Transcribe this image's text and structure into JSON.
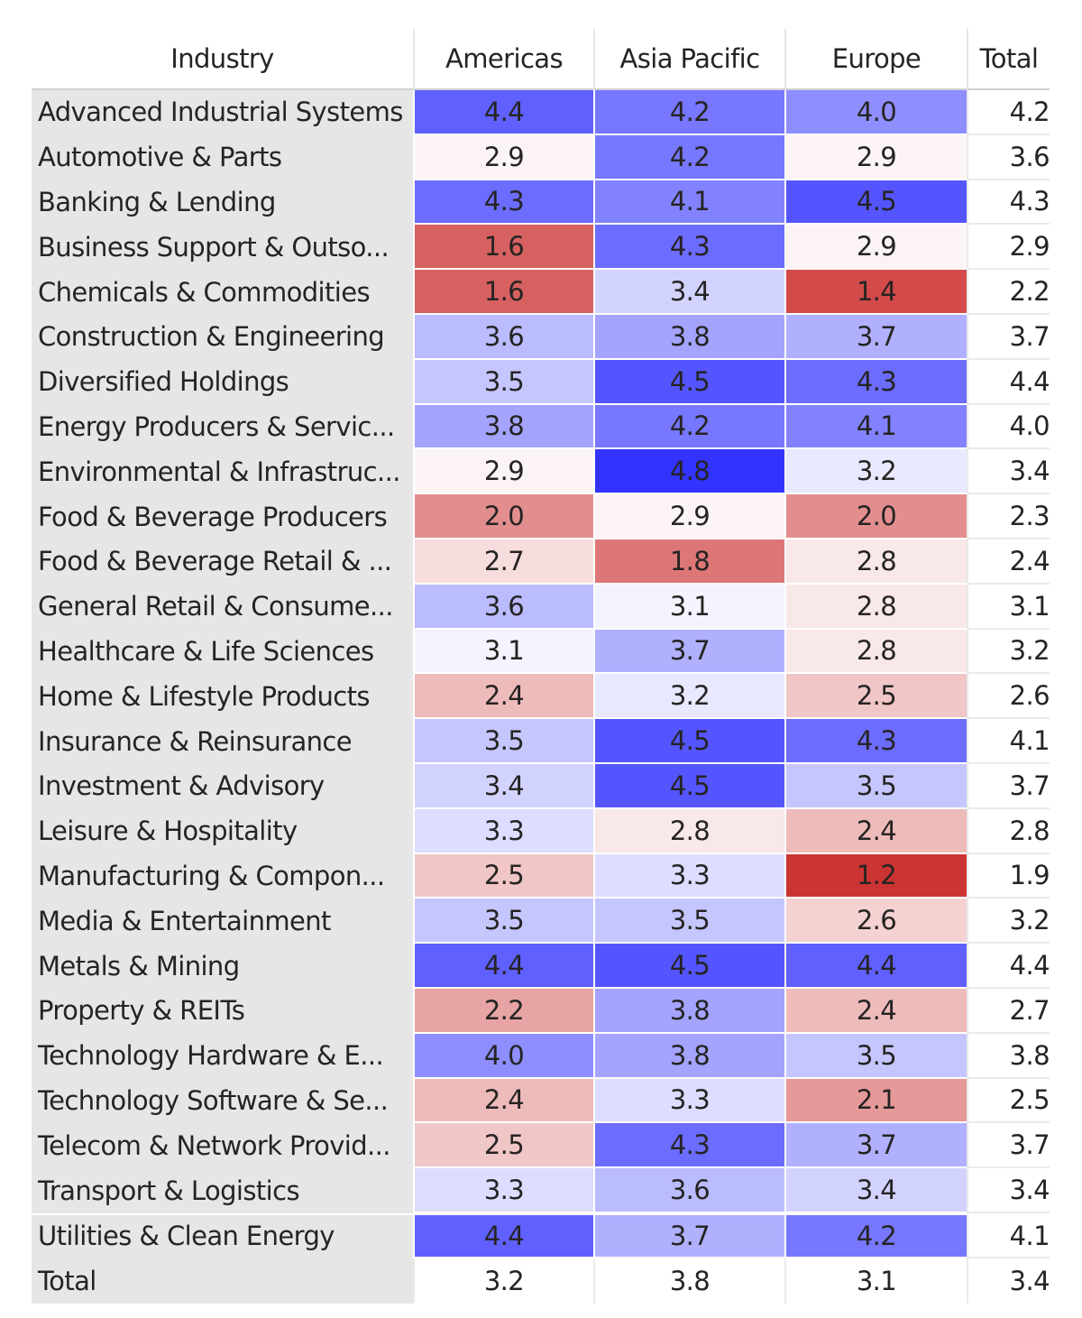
{
  "chart_data": {
    "type": "heatmap",
    "title": "",
    "row_header": "Industry",
    "columns": [
      "Americas",
      "Asia Pacific",
      "Europe",
      "Total"
    ],
    "color_scale": {
      "type": "diverging",
      "low_color": "#CC3333",
      "mid_color": "#FFFFFF",
      "high_color": "#3333FF",
      "low_value": 1.2,
      "mid_value": 3.0,
      "high_value": 4.8,
      "applies_to": [
        "Americas",
        "Asia Pacific",
        "Europe"
      ]
    },
    "rows": [
      {
        "industry": "Advanced Industrial Systems",
        "values": [
          4.4,
          4.2,
          4.0,
          4.2
        ]
      },
      {
        "industry": "Automotive & Parts",
        "values": [
          2.9,
          4.2,
          2.9,
          3.6
        ]
      },
      {
        "industry": "Banking & Lending",
        "values": [
          4.3,
          4.1,
          4.5,
          4.3
        ]
      },
      {
        "industry": "Business Support & Outso...",
        "values": [
          1.6,
          4.3,
          2.9,
          2.9
        ]
      },
      {
        "industry": "Chemicals & Commodities",
        "values": [
          1.6,
          3.4,
          1.4,
          2.2
        ]
      },
      {
        "industry": "Construction & Engineering",
        "values": [
          3.6,
          3.8,
          3.7,
          3.7
        ]
      },
      {
        "industry": "Diversified Holdings",
        "values": [
          3.5,
          4.5,
          4.3,
          4.4
        ]
      },
      {
        "industry": "Energy Producers & Servic...",
        "values": [
          3.8,
          4.2,
          4.1,
          4.0
        ]
      },
      {
        "industry": "Environmental & Infrastruc...",
        "values": [
          2.9,
          4.8,
          3.2,
          3.4
        ]
      },
      {
        "industry": "Food & Beverage Producers",
        "values": [
          2.0,
          2.9,
          2.0,
          2.3
        ]
      },
      {
        "industry": "Food & Beverage Retail & ...",
        "values": [
          2.7,
          1.8,
          2.8,
          2.4
        ]
      },
      {
        "industry": "General Retail & Consume...",
        "values": [
          3.6,
          3.1,
          2.8,
          3.1
        ]
      },
      {
        "industry": "Healthcare & Life Sciences",
        "values": [
          3.1,
          3.7,
          2.8,
          3.2
        ]
      },
      {
        "industry": "Home & Lifestyle Products",
        "values": [
          2.4,
          3.2,
          2.5,
          2.6
        ]
      },
      {
        "industry": "Insurance & Reinsurance",
        "values": [
          3.5,
          4.5,
          4.3,
          4.1
        ]
      },
      {
        "industry": "Investment & Advisory",
        "values": [
          3.4,
          4.5,
          3.5,
          3.7
        ]
      },
      {
        "industry": "Leisure & Hospitality",
        "values": [
          3.3,
          2.8,
          2.4,
          2.8
        ]
      },
      {
        "industry": "Manufacturing & Compon...",
        "values": [
          2.5,
          3.3,
          1.2,
          1.9
        ]
      },
      {
        "industry": "Media & Entertainment",
        "values": [
          3.5,
          3.5,
          2.6,
          3.2
        ]
      },
      {
        "industry": "Metals & Mining",
        "values": [
          4.4,
          4.5,
          4.4,
          4.4
        ]
      },
      {
        "industry": "Property & REITs",
        "values": [
          2.2,
          3.8,
          2.4,
          2.7
        ]
      },
      {
        "industry": "Technology Hardware & E...",
        "values": [
          4.0,
          3.8,
          3.5,
          3.8
        ]
      },
      {
        "industry": "Technology Software & Se...",
        "values": [
          2.4,
          3.3,
          2.1,
          2.5
        ]
      },
      {
        "industry": "Telecom & Network Provid...",
        "values": [
          2.5,
          4.3,
          3.7,
          3.7
        ]
      },
      {
        "industry": "Transport & Logistics",
        "values": [
          3.3,
          3.6,
          3.4,
          3.4
        ]
      },
      {
        "industry": "Utilities & Clean Energy",
        "values": [
          4.4,
          3.7,
          4.2,
          4.1
        ]
      }
    ],
    "total_row": {
      "industry": "Total",
      "values": [
        3.2,
        3.8,
        3.1,
        3.4
      ]
    }
  }
}
